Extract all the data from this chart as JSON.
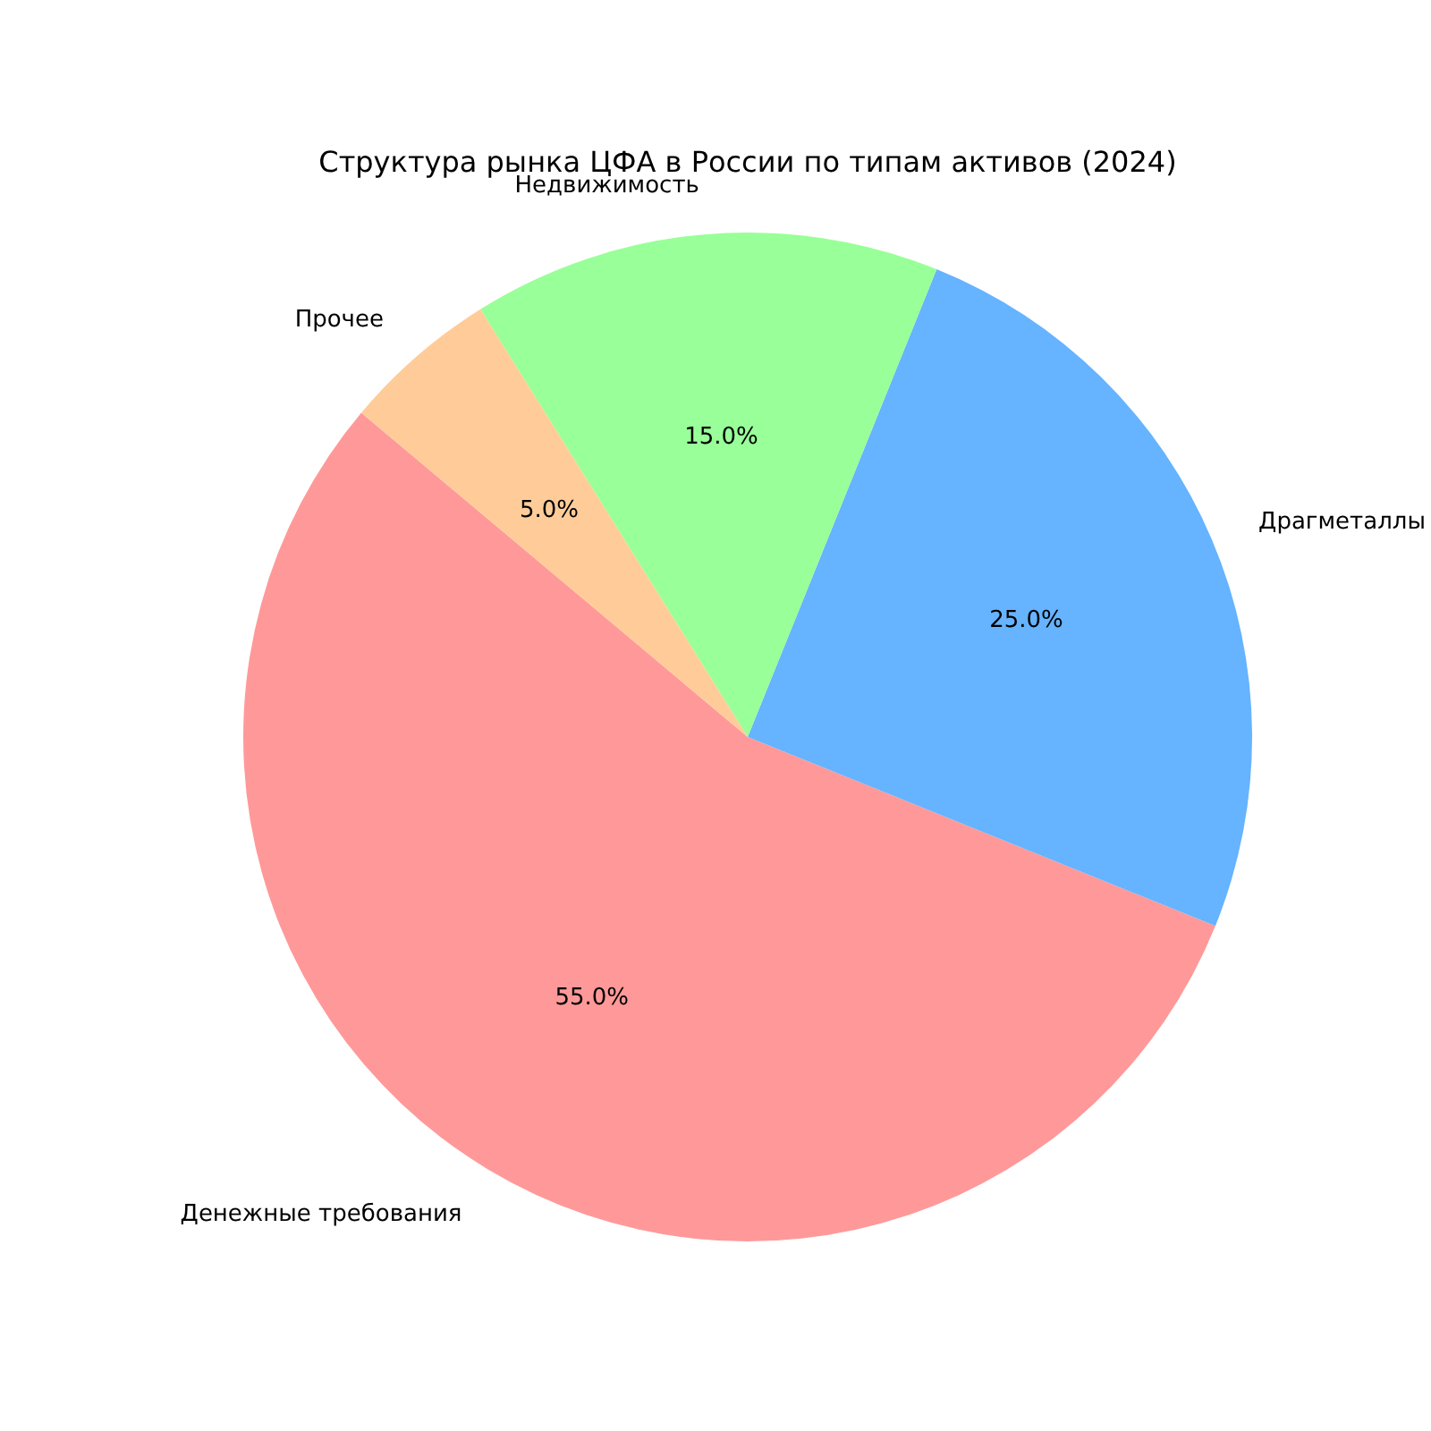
{
  "chart_data": {
    "type": "pie",
    "title": "Структура рынка ЦФА в России по типам активов (2024)",
    "categories": [
      "Денежные требования",
      "Драгметаллы",
      "Недвижимость",
      "Прочее"
    ],
    "values": [
      55,
      25,
      15,
      5
    ],
    "colors": [
      "#ff9999",
      "#66b3ff",
      "#99ff99",
      "#ffcc99"
    ],
    "value_labels": [
      "55.0%",
      "25.0%",
      "15.0%",
      "5.0%"
    ]
  }
}
